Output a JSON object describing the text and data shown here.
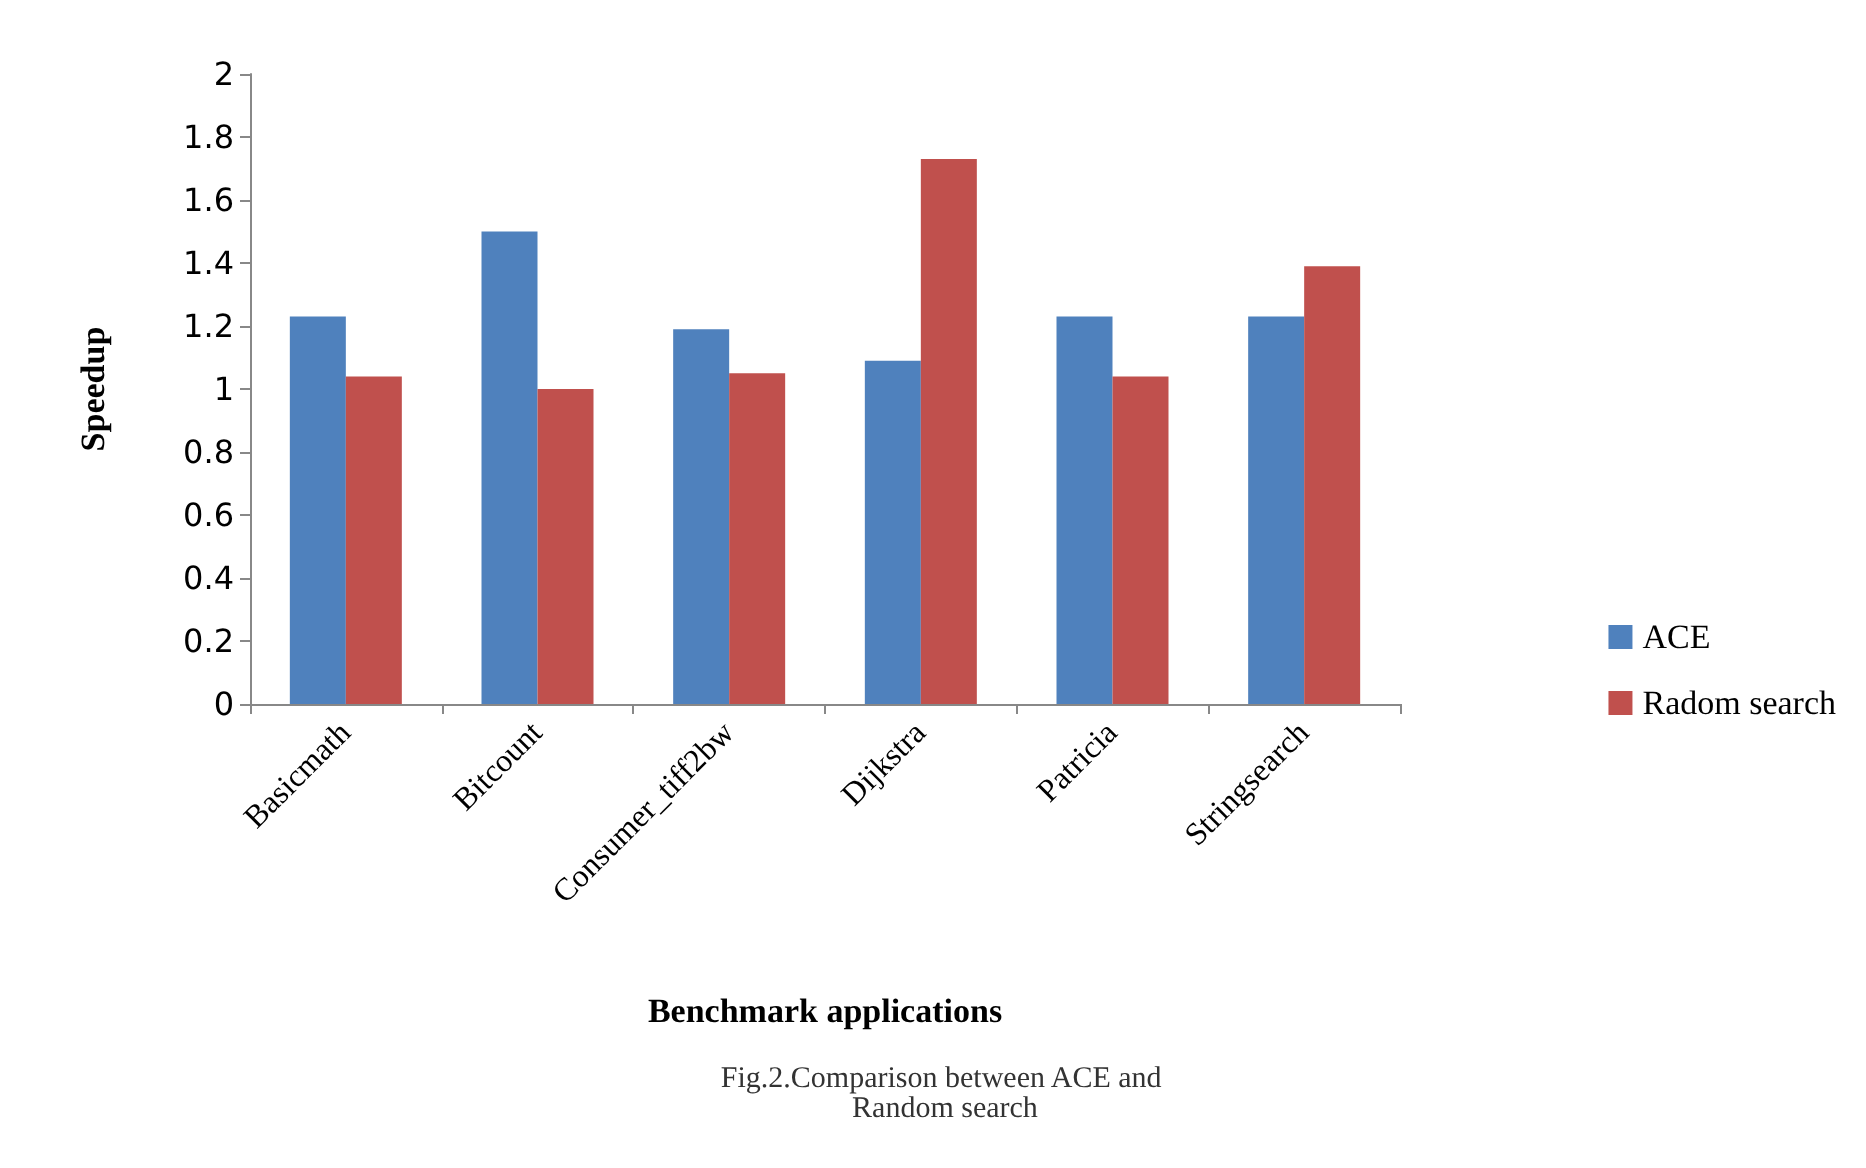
{
  "chart_data": {
    "type": "bar",
    "xlabel": "Benchmark applications",
    "ylabel": "Speedup",
    "categories": [
      "Basicmath",
      "Bitcount",
      "Consumer_tiff2bw",
      "Dijkstra",
      "Patricia",
      "Stringsearch"
    ],
    "series": [
      {
        "name": "ACE",
        "color": "#4f81bd",
        "values": [
          1.23,
          1.5,
          1.19,
          1.09,
          1.23,
          1.23
        ]
      },
      {
        "name": "Radom search",
        "color": "#c0504d",
        "values": [
          1.04,
          1.0,
          1.05,
          1.73,
          1.04,
          1.39
        ]
      }
    ],
    "ylim": [
      0,
      2
    ],
    "yticks": [
      0,
      0.2,
      0.4,
      0.6,
      0.8,
      1,
      1.2,
      1.4,
      1.6,
      1.8,
      2
    ],
    "grid": false,
    "legend": "right",
    "annotations": [
      "Fig.2.Comparison between ACE and Random search"
    ]
  }
}
